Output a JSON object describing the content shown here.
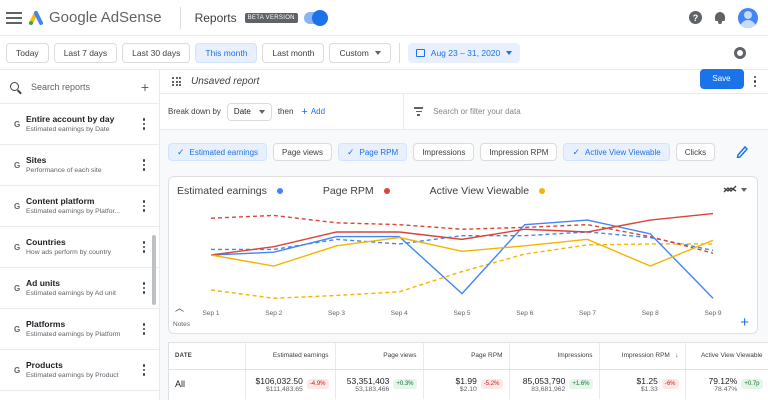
{
  "header": {
    "product_name": "Google AdSense",
    "section_title": "Reports",
    "beta_badge": "BETA VERSION",
    "help_glyph": "?"
  },
  "date_bar": {
    "presets": [
      "Today",
      "Last 7 days",
      "Last 30 days",
      "This month",
      "Last month"
    ],
    "active_preset": "This month",
    "custom_label": "Custom",
    "range_label": "Aug 23 – 31, 2020"
  },
  "sidebar": {
    "search_placeholder": "Search reports",
    "add_glyph": "+",
    "items": [
      {
        "title": "Entire account by day",
        "subtitle": "Estimated earnings by Date"
      },
      {
        "title": "Sites",
        "subtitle": "Performance of each site"
      },
      {
        "title": "Content platform",
        "subtitle": "Estimated earnings by Platfor..."
      },
      {
        "title": "Countries",
        "subtitle": "How ads perform by country"
      },
      {
        "title": "Ad units",
        "subtitle": "Estimated earnings by Ad unit"
      },
      {
        "title": "Platforms",
        "subtitle": "Estimated earnings by Platform"
      },
      {
        "title": "Products",
        "subtitle": "Estimated earnings by Product"
      }
    ]
  },
  "report": {
    "title": "Unsaved report",
    "save_label": "Save",
    "breakdown_label": "Break down by",
    "breakdown_value": "Date",
    "then_label": "then",
    "add_label": "Add",
    "filter_placeholder": "Search or filter your data"
  },
  "metric_chips": [
    {
      "label": "Estimated earnings",
      "selected": true
    },
    {
      "label": "Page views",
      "selected": false
    },
    {
      "label": "Page RPM",
      "selected": true
    },
    {
      "label": "Impressions",
      "selected": false
    },
    {
      "label": "Impression RPM",
      "selected": false
    },
    {
      "label": "Active View Viewable",
      "selected": true
    },
    {
      "label": "Clicks",
      "selected": false
    }
  ],
  "colors": {
    "accent": "#1a73e8",
    "estimated_earnings": "#4285f4",
    "page_rpm": "#db4437",
    "active_view": "#f4b400"
  },
  "chart_data": {
    "type": "line",
    "title": "",
    "x": [
      "Sep 1",
      "Sep 2",
      "Sep 3",
      "Sep 4",
      "Sep 5",
      "Sep 6",
      "Sep 7",
      "Sep 8",
      "Sep 9"
    ],
    "series": [
      {
        "name": "Estimated earnings",
        "values": [
          0.5,
          0.53,
          0.7,
          0.7,
          0.08,
          0.83,
          0.88,
          0.73,
          0.03
        ]
      },
      {
        "name": "Page RPM",
        "values": [
          0.5,
          0.59,
          0.75,
          0.75,
          0.67,
          0.78,
          0.75,
          0.88,
          0.95
        ]
      },
      {
        "name": "Active View Viewable",
        "values": [
          0.5,
          0.38,
          0.6,
          0.69,
          0.54,
          0.6,
          0.67,
          0.38,
          0.66
        ]
      }
    ],
    "comparison_series": [
      {
        "name": "Estimated earnings",
        "values": [
          0.56,
          0.56,
          0.67,
          0.62,
          0.71,
          0.71,
          0.75,
          0.69,
          0.55
        ]
      },
      {
        "name": "Page RPM",
        "values": [
          0.9,
          0.93,
          0.85,
          0.83,
          0.78,
          0.8,
          0.83,
          0.7,
          0.52
        ]
      },
      {
        "name": "Active View Viewable",
        "values": [
          0.12,
          0.03,
          0.06,
          0.1,
          0.32,
          0.51,
          0.61,
          0.62,
          0.62
        ]
      }
    ],
    "notes_label": "Notes",
    "grid": false,
    "legend_position": "top-left"
  },
  "table": {
    "columns": [
      "DATE",
      "Estimated earnings",
      "Page views",
      "Page RPM",
      "Impressions",
      "Impression RPM",
      "Active View Viewable"
    ],
    "sort_glyph": "↓",
    "rows": [
      {
        "label": "All",
        "cells": [
          {
            "value": "$106,032.50",
            "compare": "$111,483.65",
            "change": "-4.9%",
            "dir": "neg"
          },
          {
            "value": "53,351,403",
            "compare": "53,183,466",
            "change": "+0.3%",
            "dir": "pos"
          },
          {
            "value": "$1.99",
            "compare": "$2.10",
            "change": "-5.2%",
            "dir": "neg"
          },
          {
            "value": "85,053,790",
            "compare": "83,681,962",
            "change": "+1.6%",
            "dir": "pos"
          },
          {
            "value": "$1.25",
            "compare": "$1.33",
            "change": "-6%",
            "dir": "neg"
          },
          {
            "value": "79.12%",
            "compare": "78.47%",
            "change": "+0.7p",
            "dir": "pos"
          }
        ]
      }
    ]
  }
}
